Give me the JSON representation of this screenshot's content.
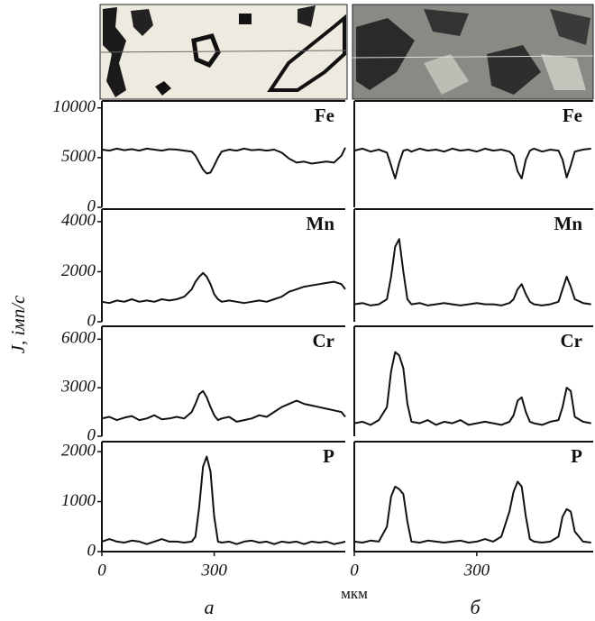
{
  "figure": {
    "ylabel": "J, імп/с",
    "xlabel": "мкм",
    "captions": [
      "а",
      "б"
    ]
  },
  "chart_data": [
    {
      "type": "line",
      "label": "Fe",
      "color": "#111",
      "xlim": [
        0,
        650
      ],
      "ylim": [
        0,
        10700
      ],
      "yticks": [
        0,
        5000,
        10000
      ],
      "x": [
        0,
        20,
        40,
        60,
        80,
        100,
        120,
        140,
        160,
        180,
        200,
        220,
        240,
        250,
        260,
        270,
        280,
        290,
        300,
        310,
        320,
        340,
        360,
        380,
        400,
        420,
        440,
        460,
        480,
        500,
        520,
        540,
        560,
        580,
        600,
        620,
        640,
        650
      ],
      "values": [
        5800,
        5700,
        5900,
        5750,
        5850,
        5700,
        5900,
        5800,
        5700,
        5850,
        5800,
        5700,
        5600,
        5200,
        4500,
        3800,
        3400,
        3500,
        4200,
        5000,
        5600,
        5800,
        5700,
        5900,
        5750,
        5800,
        5700,
        5800,
        5500,
        4900,
        4500,
        4600,
        4400,
        4500,
        4600,
        4500,
        5200,
        6000
      ]
    },
    {
      "type": "line",
      "label": "Mn",
      "color": "#111",
      "xlim": [
        0,
        650
      ],
      "ylim": [
        0,
        4500
      ],
      "yticks": [
        0,
        2000,
        4000
      ],
      "x": [
        0,
        20,
        40,
        60,
        80,
        100,
        120,
        140,
        160,
        180,
        200,
        220,
        240,
        250,
        260,
        270,
        280,
        290,
        300,
        310,
        320,
        340,
        360,
        380,
        400,
        420,
        440,
        460,
        480,
        500,
        520,
        540,
        560,
        580,
        600,
        620,
        640,
        650
      ],
      "values": [
        800,
        750,
        850,
        800,
        900,
        800,
        850,
        800,
        900,
        850,
        900,
        1000,
        1300,
        1600,
        1800,
        1950,
        1800,
        1500,
        1100,
        900,
        800,
        850,
        800,
        750,
        800,
        850,
        800,
        900,
        1000,
        1200,
        1300,
        1400,
        1450,
        1500,
        1550,
        1600,
        1500,
        1300
      ]
    },
    {
      "type": "line",
      "label": "Cr",
      "color": "#111",
      "xlim": [
        0,
        650
      ],
      "ylim": [
        0,
        6800
      ],
      "yticks": [
        0,
        3000,
        6000
      ],
      "x": [
        0,
        20,
        40,
        60,
        80,
        100,
        120,
        140,
        160,
        180,
        200,
        220,
        240,
        250,
        260,
        270,
        280,
        290,
        300,
        310,
        320,
        340,
        360,
        380,
        400,
        420,
        440,
        460,
        480,
        500,
        520,
        540,
        560,
        580,
        600,
        620,
        640,
        650
      ],
      "values": [
        1100,
        1200,
        1000,
        1150,
        1250,
        1000,
        1100,
        1300,
        1050,
        1100,
        1200,
        1100,
        1500,
        2000,
        2600,
        2800,
        2400,
        1800,
        1300,
        1000,
        1100,
        1200,
        900,
        1000,
        1100,
        1300,
        1200,
        1500,
        1800,
        2000,
        2200,
        2000,
        1900,
        1800,
        1700,
        1600,
        1500,
        1200
      ]
    },
    {
      "type": "line",
      "label": "P",
      "color": "#111",
      "xlim": [
        0,
        650
      ],
      "ylim": [
        0,
        2200
      ],
      "yticks": [
        0,
        1000,
        2000
      ],
      "xticks": [
        0,
        300
      ],
      "x": [
        0,
        20,
        40,
        60,
        80,
        100,
        120,
        140,
        160,
        180,
        200,
        220,
        240,
        250,
        260,
        270,
        280,
        290,
        300,
        310,
        320,
        340,
        360,
        380,
        400,
        420,
        440,
        460,
        480,
        500,
        520,
        540,
        560,
        580,
        600,
        620,
        640,
        650
      ],
      "values": [
        200,
        250,
        200,
        180,
        220,
        200,
        150,
        200,
        250,
        200,
        200,
        180,
        200,
        300,
        900,
        1700,
        1900,
        1600,
        700,
        200,
        180,
        200,
        150,
        200,
        220,
        180,
        200,
        150,
        200,
        180,
        200,
        150,
        200,
        180,
        200,
        150,
        180,
        200
      ]
    },
    {
      "type": "line",
      "label": "Fe",
      "color": "#111",
      "xlim": [
        0,
        585
      ],
      "ylim": [
        0,
        10700
      ],
      "x": [
        0,
        20,
        40,
        60,
        80,
        90,
        100,
        110,
        120,
        130,
        140,
        160,
        180,
        200,
        220,
        240,
        260,
        280,
        300,
        320,
        340,
        360,
        380,
        390,
        400,
        410,
        420,
        430,
        440,
        460,
        480,
        500,
        510,
        520,
        530,
        540,
        560,
        580
      ],
      "values": [
        5700,
        5900,
        5600,
        5800,
        5500,
        4200,
        2900,
        4500,
        5700,
        5800,
        5600,
        5900,
        5700,
        5800,
        5600,
        5900,
        5700,
        5800,
        5600,
        5900,
        5700,
        5800,
        5600,
        5200,
        3600,
        2900,
        4800,
        5700,
        5900,
        5600,
        5800,
        5700,
        4800,
        3000,
        4200,
        5600,
        5800,
        5900
      ]
    },
    {
      "type": "line",
      "label": "Mn",
      "color": "#111",
      "xlim": [
        0,
        585
      ],
      "ylim": [
        0,
        4500
      ],
      "x": [
        0,
        20,
        40,
        60,
        80,
        90,
        100,
        110,
        120,
        130,
        140,
        160,
        180,
        200,
        220,
        240,
        260,
        280,
        300,
        320,
        340,
        360,
        380,
        390,
        400,
        410,
        420,
        430,
        440,
        460,
        480,
        500,
        510,
        520,
        530,
        540,
        560,
        580
      ],
      "values": [
        700,
        750,
        650,
        700,
        900,
        1800,
        3000,
        3300,
        2000,
        900,
        700,
        750,
        650,
        700,
        750,
        700,
        650,
        700,
        750,
        700,
        700,
        650,
        750,
        900,
        1300,
        1500,
        1100,
        800,
        700,
        650,
        700,
        800,
        1300,
        1800,
        1400,
        900,
        750,
        700
      ]
    },
    {
      "type": "line",
      "label": "Cr",
      "color": "#111",
      "xlim": [
        0,
        585
      ],
      "ylim": [
        0,
        6800
      ],
      "x": [
        0,
        20,
        40,
        60,
        80,
        90,
        100,
        110,
        120,
        130,
        140,
        160,
        180,
        200,
        220,
        240,
        260,
        280,
        300,
        320,
        340,
        360,
        380,
        390,
        400,
        410,
        420,
        430,
        440,
        460,
        480,
        500,
        510,
        520,
        530,
        540,
        560,
        580
      ],
      "values": [
        800,
        900,
        700,
        1000,
        1800,
        4000,
        5200,
        5000,
        4200,
        2000,
        900,
        800,
        1000,
        700,
        900,
        800,
        1000,
        700,
        800,
        900,
        800,
        700,
        900,
        1300,
        2200,
        2400,
        1500,
        900,
        800,
        700,
        900,
        1000,
        1800,
        3000,
        2800,
        1200,
        900,
        800
      ]
    },
    {
      "type": "line",
      "label": "P",
      "color": "#111",
      "xlim": [
        0,
        585
      ],
      "ylim": [
        0,
        2200
      ],
      "xticks": [
        0,
        300
      ],
      "x": [
        0,
        20,
        40,
        60,
        80,
        90,
        100,
        110,
        120,
        130,
        140,
        160,
        180,
        200,
        220,
        240,
        260,
        280,
        300,
        320,
        340,
        360,
        380,
        390,
        400,
        410,
        420,
        430,
        440,
        460,
        480,
        500,
        510,
        520,
        530,
        540,
        560,
        580
      ],
      "values": [
        200,
        180,
        220,
        200,
        500,
        1100,
        1300,
        1250,
        1150,
        600,
        200,
        180,
        220,
        200,
        180,
        200,
        220,
        180,
        200,
        250,
        200,
        300,
        800,
        1200,
        1400,
        1300,
        700,
        250,
        200,
        180,
        200,
        300,
        700,
        850,
        800,
        400,
        200,
        180
      ]
    }
  ]
}
